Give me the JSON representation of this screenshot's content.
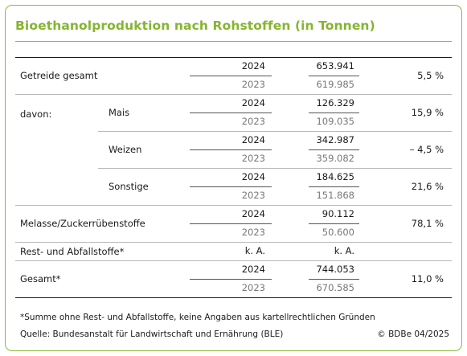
{
  "title": "Bioethanolproduktion nach Rohstoffen (in Tonnen)",
  "labels": {
    "davon": "davon:"
  },
  "chart_data": {
    "type": "table",
    "title": "Bioethanolproduktion nach Rohstoffen (in Tonnen)",
    "rows": [
      {
        "name": "Getreide gesamt",
        "group": "",
        "values": [
          {
            "year": "2024",
            "value": "653.941"
          },
          {
            "year": "2023",
            "value": "619.985"
          }
        ],
        "change": "5,5 %"
      },
      {
        "name": "Mais",
        "group": "davon:",
        "values": [
          {
            "year": "2024",
            "value": "126.329"
          },
          {
            "year": "2023",
            "value": "109.035"
          }
        ],
        "change": "15,9 %"
      },
      {
        "name": "Weizen",
        "group": "davon:",
        "values": [
          {
            "year": "2024",
            "value": "342.987"
          },
          {
            "year": "2023",
            "value": "359.082"
          }
        ],
        "change": "– 4,5 %"
      },
      {
        "name": "Sonstige",
        "group": "davon:",
        "values": [
          {
            "year": "2024",
            "value": "184.625"
          },
          {
            "year": "2023",
            "value": "151.868"
          }
        ],
        "change": "21,6 %"
      },
      {
        "name": "Melasse/Zuckerrübenstoffe",
        "group": "",
        "values": [
          {
            "year": "2024",
            "value": "90.112"
          },
          {
            "year": "2023",
            "value": "50.600"
          }
        ],
        "change": "78,1 %"
      },
      {
        "name": "Rest- und Abfallstoffe*",
        "group": "",
        "values": [
          {
            "year": "k. A.",
            "value": "k. A."
          }
        ],
        "change": ""
      },
      {
        "name": "Gesamt*",
        "group": "",
        "values": [
          {
            "year": "2024",
            "value": "744.053"
          },
          {
            "year": "2023",
            "value": "670.585"
          }
        ],
        "change": "11,0 %"
      }
    ]
  },
  "footnote": "*Summe ohne Rest- und Abfallstoffe, keine Angaben aus kartellrechtlichen Gründen",
  "source": "Quelle: Bundesanstalt für Landwirtschaft und Ernährung (BLE)",
  "copyright": "© BDBe 04/2025",
  "colors": {
    "accent": "#86b431",
    "text": "#1a1a1a",
    "muted": "#777777"
  }
}
